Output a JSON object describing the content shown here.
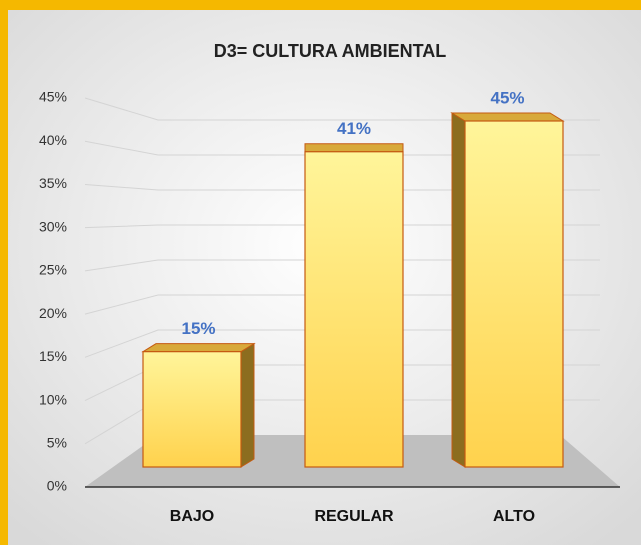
{
  "chart_data": {
    "type": "bar",
    "title": "D3= CULTURA AMBIENTAL",
    "categories": [
      "BAJO",
      "REGULAR",
      "ALTO"
    ],
    "values": [
      15,
      41,
      45
    ],
    "value_labels": [
      "15%",
      "41%",
      "45%"
    ],
    "color": "#ffe27a",
    "ylim": [
      0,
      45
    ],
    "yticks": [
      {
        "value": 0,
        "label": "0%"
      },
      {
        "value": 5,
        "label": "5%"
      },
      {
        "value": 10,
        "label": "10%"
      },
      {
        "value": 15,
        "label": "15%"
      },
      {
        "value": 20,
        "label": "20%"
      },
      {
        "value": 25,
        "label": "25%"
      },
      {
        "value": 30,
        "label": "30%"
      },
      {
        "value": 35,
        "label": "35%"
      },
      {
        "value": 40,
        "label": "40%"
      },
      {
        "value": 45,
        "label": "45%"
      }
    ],
    "grid": true
  }
}
